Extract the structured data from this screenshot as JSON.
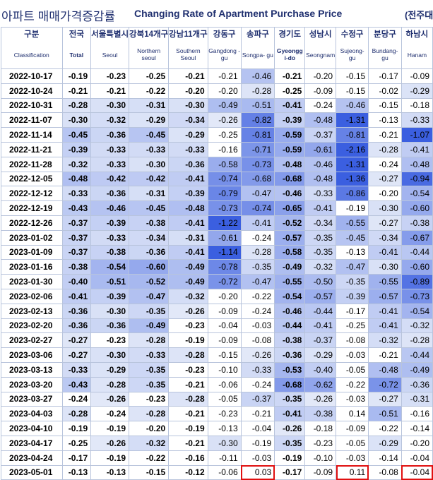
{
  "title": {
    "korean": "아파트 매매가격증감률",
    "english": "Changing Rate of Apartment Purchase Price",
    "unit": "(전주대"
  },
  "columns": [
    {
      "ko": "구분",
      "en": "Classification"
    },
    {
      "ko": "전국",
      "en": "Total"
    },
    {
      "ko": "서울특별시",
      "en": "Seoul"
    },
    {
      "ko": "강북14개구",
      "en": "Northern seoul"
    },
    {
      "ko": "강남11개구",
      "en": "Southern Seoul"
    },
    {
      "ko": "강동구",
      "en": "Gangdong -gu"
    },
    {
      "ko": "송파구",
      "en": "Songpa- gu"
    },
    {
      "ko": "경기도",
      "en": "Gyeongg i-do"
    },
    {
      "ko": "성남시",
      "en": "Seongnam"
    },
    {
      "ko": "수정구",
      "en": "Sujeong- gu"
    },
    {
      "ko": "분당구",
      "en": "Bundang- gu"
    },
    {
      "ko": "하남시",
      "en": "Hanam"
    }
  ],
  "rows": [
    {
      "date": "2022-10-17",
      "v": [
        "-0.19",
        "-0.23",
        "-0.25",
        "-0.21",
        "-0.21",
        "-0.46",
        "-0.21",
        "-0.20",
        "-0.15",
        "-0.17",
        "-0.09"
      ]
    },
    {
      "date": "2022-10-24",
      "v": [
        "-0.21",
        "-0.21",
        "-0.22",
        "-0.20",
        "-0.20",
        "-0.28",
        "-0.25",
        "-0.09",
        "-0.15",
        "-0.02",
        "-0.29"
      ]
    },
    {
      "date": "2022-10-31",
      "v": [
        "-0.28",
        "-0.30",
        "-0.31",
        "-0.30",
        "-0.49",
        "-0.51",
        "-0.41",
        "-0.24",
        "-0.46",
        "-0.15",
        "-0.18"
      ]
    },
    {
      "date": "2022-11-07",
      "v": [
        "-0.30",
        "-0.32",
        "-0.29",
        "-0.34",
        "-0.26",
        "-0.82",
        "-0.39",
        "-0.48",
        "-1.31",
        "-0.13",
        "-0.33"
      ]
    },
    {
      "date": "2022-11-14",
      "v": [
        "-0.45",
        "-0.36",
        "-0.45",
        "-0.29",
        "-0.25",
        "-0.81",
        "-0.59",
        "-0.37",
        "-0.81",
        "-0.21",
        "-1.07"
      ]
    },
    {
      "date": "2022-11-21",
      "v": [
        "-0.39",
        "-0.33",
        "-0.33",
        "-0.33",
        "-0.16",
        "-0.71",
        "-0.59",
        "-0.61",
        "-2.16",
        "-0.28",
        "-0.41"
      ]
    },
    {
      "date": "2022-11-28",
      "v": [
        "-0.32",
        "-0.33",
        "-0.30",
        "-0.36",
        "-0.58",
        "-0.73",
        "-0.48",
        "-0.46",
        "-1.31",
        "-0.24",
        "-0.48"
      ]
    },
    {
      "date": "2022-12-05",
      "v": [
        "-0.48",
        "-0.42",
        "-0.42",
        "-0.41",
        "-0.74",
        "-0.68",
        "-0.68",
        "-0.48",
        "-1.36",
        "-0.27",
        "-0.94"
      ]
    },
    {
      "date": "2022-12-12",
      "v": [
        "-0.33",
        "-0.36",
        "-0.31",
        "-0.39",
        "-0.79",
        "-0.47",
        "-0.46",
        "-0.33",
        "-0.86",
        "-0.20",
        "-0.54"
      ]
    },
    {
      "date": "2022-12-19",
      "v": [
        "-0.43",
        "-0.46",
        "-0.45",
        "-0.48",
        "-0.73",
        "-0.74",
        "-0.65",
        "-0.41",
        "-0.19",
        "-0.30",
        "-0.60"
      ]
    },
    {
      "date": "2022-12-26",
      "v": [
        "-0.37",
        "-0.39",
        "-0.38",
        "-0.41",
        "-1.22",
        "-0.41",
        "-0.52",
        "-0.34",
        "-0.55",
        "-0.27",
        "-0.38"
      ]
    },
    {
      "date": "2023-01-02",
      "v": [
        "-0.37",
        "-0.33",
        "-0.34",
        "-0.31",
        "-0.61",
        "-0.24",
        "-0.57",
        "-0.35",
        "-0.45",
        "-0.34",
        "-0.67"
      ]
    },
    {
      "date": "2023-01-09",
      "v": [
        "-0.37",
        "-0.38",
        "-0.36",
        "-0.41",
        "-1.14",
        "-0.28",
        "-0.58",
        "-0.35",
        "-0.13",
        "-0.41",
        "-0.44"
      ]
    },
    {
      "date": "2023-01-16",
      "v": [
        "-0.38",
        "-0.54",
        "-0.60",
        "-0.49",
        "-0.78",
        "-0.35",
        "-0.49",
        "-0.32",
        "-0.47",
        "-0.30",
        "-0.60"
      ]
    },
    {
      "date": "2023-01-30",
      "v": [
        "-0.40",
        "-0.51",
        "-0.52",
        "-0.49",
        "-0.72",
        "-0.47",
        "-0.55",
        "-0.50",
        "-0.35",
        "-0.55",
        "-0.89"
      ]
    },
    {
      "date": "2023-02-06",
      "v": [
        "-0.41",
        "-0.39",
        "-0.47",
        "-0.32",
        "-0.20",
        "-0.22",
        "-0.54",
        "-0.57",
        "-0.39",
        "-0.57",
        "-0.73"
      ]
    },
    {
      "date": "2023-02-13",
      "v": [
        "-0.36",
        "-0.30",
        "-0.35",
        "-0.26",
        "-0.09",
        "-0.24",
        "-0.46",
        "-0.44",
        "-0.17",
        "-0.41",
        "-0.54"
      ]
    },
    {
      "date": "2023-02-20",
      "v": [
        "-0.36",
        "-0.36",
        "-0.49",
        "-0.23",
        "-0.04",
        "-0.03",
        "-0.44",
        "-0.41",
        "-0.25",
        "-0.41",
        "-0.32"
      ]
    },
    {
      "date": "2023-02-27",
      "v": [
        "-0.27",
        "-0.23",
        "-0.28",
        "-0.19",
        "-0.09",
        "-0.08",
        "-0.38",
        "-0.37",
        "-0.08",
        "-0.32",
        "-0.28"
      ]
    },
    {
      "date": "2023-03-06",
      "v": [
        "-0.27",
        "-0.30",
        "-0.33",
        "-0.28",
        "-0.15",
        "-0.26",
        "-0.36",
        "-0.29",
        "-0.03",
        "-0.21",
        "-0.44"
      ]
    },
    {
      "date": "2023-03-13",
      "v": [
        "-0.33",
        "-0.29",
        "-0.35",
        "-0.23",
        "-0.10",
        "-0.33",
        "-0.53",
        "-0.40",
        "-0.05",
        "-0.48",
        "-0.49"
      ]
    },
    {
      "date": "2023-03-20",
      "v": [
        "-0.43",
        "-0.28",
        "-0.35",
        "-0.21",
        "-0.06",
        "-0.24",
        "-0.68",
        "-0.62",
        "-0.22",
        "-0.72",
        "-0.36"
      ]
    },
    {
      "date": "2023-03-27",
      "v": [
        "-0.24",
        "-0.26",
        "-0.23",
        "-0.28",
        "-0.05",
        "-0.37",
        "-0.35",
        "-0.26",
        "-0.03",
        "-0.27",
        "-0.31"
      ]
    },
    {
      "date": "2023-04-03",
      "v": [
        "-0.28",
        "-0.24",
        "-0.28",
        "-0.21",
        "-0.23",
        "-0.21",
        "-0.41",
        "-0.38",
        "0.14",
        "-0.51",
        "-0.16"
      ]
    },
    {
      "date": "2023-04-10",
      "v": [
        "-0.19",
        "-0.19",
        "-0.20",
        "-0.19",
        "-0.13",
        "-0.04",
        "-0.26",
        "-0.18",
        "-0.09",
        "-0.22",
        "-0.14"
      ]
    },
    {
      "date": "2023-04-17",
      "v": [
        "-0.25",
        "-0.26",
        "-0.32",
        "-0.21",
        "-0.30",
        "-0.19",
        "-0.35",
        "-0.23",
        "-0.05",
        "-0.29",
        "-0.20"
      ]
    },
    {
      "date": "2023-04-24",
      "v": [
        "-0.17",
        "-0.19",
        "-0.22",
        "-0.16",
        "-0.11",
        "-0.03",
        "-0.19",
        "-0.10",
        "-0.03",
        "-0.14",
        "-0.04"
      ]
    },
    {
      "date": "2023-05-01",
      "v": [
        "-0.13",
        "-0.13",
        "-0.15",
        "-0.12",
        "-0.06",
        "0.03",
        "-0.17",
        "-0.09",
        "0.11",
        "-0.08",
        "-0.04"
      ]
    }
  ],
  "highlighted_cells": [
    {
      "date": "2023-05-01",
      "column": "송파구"
    },
    {
      "date": "2023-05-01",
      "column": "수정구"
    },
    {
      "date": "2023-05-01",
      "column": "하남시"
    }
  ],
  "colors": {
    "header_text": "#1f2f6f",
    "highlight_border": "#e01010",
    "shade_dark": "#3b5fe0",
    "shade_light": "#e4eaf8",
    "grid": "#b8c4dc"
  }
}
